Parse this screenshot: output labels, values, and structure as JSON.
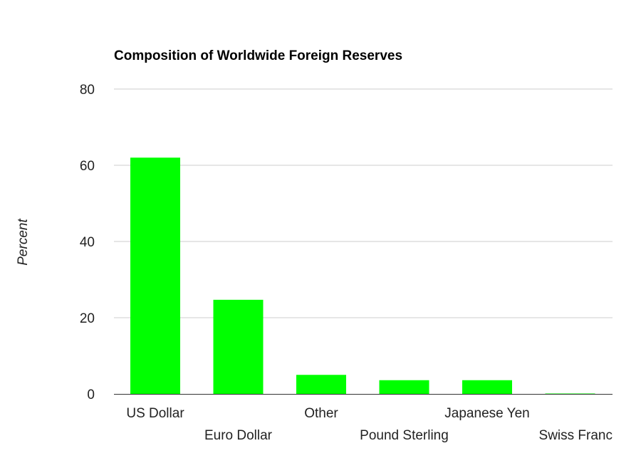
{
  "chart_data": {
    "type": "bar",
    "title": "Composition of Worldwide Foreign Reserves",
    "xlabel": "",
    "ylabel": "Percent",
    "categories": [
      "US Dollar",
      "Euro Dollar",
      "Other",
      "Pound Sterling",
      "Japanese Yen",
      "Swiss Franc"
    ],
    "values": [
      62,
      24.7,
      5,
      3.6,
      3.6,
      0.1
    ],
    "ylim": [
      0,
      80
    ],
    "yticks": [
      0,
      20,
      40,
      60,
      80
    ],
    "bar_color": "#00ff00",
    "grid": true,
    "legend": "none"
  }
}
